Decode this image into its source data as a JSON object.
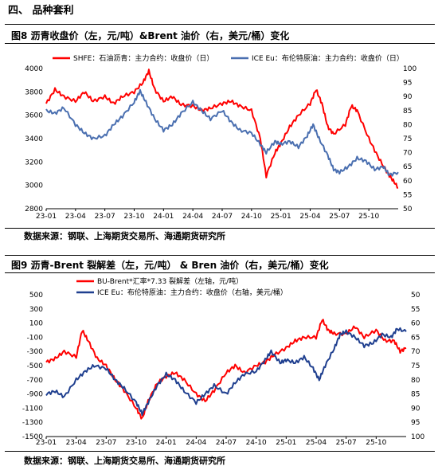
{
  "section": {
    "title": "四、 品种套利"
  },
  "figures": [
    {
      "title": "图8  沥青收盘价（左，元/吨）&Brent 油价（右，美元/桶）变化",
      "source": "数据来源：钢联、上海期货交易所、海通期货研究所"
    },
    {
      "title": "图9  沥青-Brent 裂解差（左，元/吨） & Bren 油价（右，美元/桶）变化",
      "source": "数据来源：钢联、上海期货交易所、海通期货研究所"
    }
  ],
  "colors": {
    "red": "#ff0000",
    "blue": "#4a6fb0",
    "darkblue": "#1f3f8f"
  },
  "chart_data": [
    {
      "type": "line",
      "x_ticks": [
        "23-01",
        "23-04",
        "23-07",
        "23-10",
        "24-01",
        "24-04",
        "24-07",
        "24-10",
        "25-01",
        "25-04",
        "25-07",
        "25-10"
      ],
      "y_left": {
        "ticks": [
          2800,
          3000,
          3200,
          3400,
          3600,
          3800,
          4000
        ],
        "lim": [
          2800,
          4000
        ]
      },
      "y_right": {
        "ticks": [
          50,
          55,
          60,
          65,
          70,
          75,
          80,
          85,
          90,
          95,
          100
        ],
        "lim": [
          50,
          100
        ]
      },
      "legend_position": "top",
      "series": [
        {
          "name": "SHFE：石油沥青：主力合约：收盘价（日）",
          "axis": "left",
          "color": "#ff0000",
          "points": [
            [
              0,
              3700
            ],
            [
              0.3,
              3820
            ],
            [
              0.6,
              3760
            ],
            [
              1,
              3720
            ],
            [
              1.3,
              3800
            ],
            [
              1.6,
              3720
            ],
            [
              2,
              3760
            ],
            [
              2.3,
              3700
            ],
            [
              2.6,
              3760
            ],
            [
              3,
              3800
            ],
            [
              3.3,
              3880
            ],
            [
              3.5,
              3980
            ],
            [
              3.7,
              3820
            ],
            [
              4,
              3720
            ],
            [
              4.3,
              3760
            ],
            [
              4.6,
              3690
            ],
            [
              5,
              3680
            ],
            [
              5.3,
              3640
            ],
            [
              5.6,
              3660
            ],
            [
              6,
              3700
            ],
            [
              6.3,
              3720
            ],
            [
              6.6,
              3680
            ],
            [
              7,
              3640
            ],
            [
              7.3,
              3400
            ],
            [
              7.5,
              3080
            ],
            [
              7.8,
              3280
            ],
            [
              8,
              3360
            ],
            [
              8.3,
              3500
            ],
            [
              8.6,
              3600
            ],
            [
              9,
              3700
            ],
            [
              9.2,
              3820
            ],
            [
              9.4,
              3700
            ],
            [
              9.6,
              3500
            ],
            [
              9.8,
              3440
            ],
            [
              10.2,
              3520
            ],
            [
              10.4,
              3680
            ],
            [
              10.6,
              3640
            ],
            [
              11,
              3400
            ],
            [
              11.3,
              3250
            ],
            [
              11.6,
              3120
            ],
            [
              11.8,
              3050
            ],
            [
              12,
              2980
            ]
          ]
        },
        {
          "name": "ICE Eu：布伦特原油：主力合约：收盘价（日）",
          "axis": "right",
          "color": "#4a6fb0",
          "points": [
            [
              0,
              85
            ],
            [
              0.3,
              84
            ],
            [
              0.6,
              86
            ],
            [
              1,
              80
            ],
            [
              1.3,
              77
            ],
            [
              1.6,
              75
            ],
            [
              2,
              76
            ],
            [
              2.3,
              80
            ],
            [
              2.6,
              83
            ],
            [
              3,
              88
            ],
            [
              3.2,
              92
            ],
            [
              3.4,
              88
            ],
            [
              3.7,
              82
            ],
            [
              4,
              78
            ],
            [
              4.3,
              80
            ],
            [
              4.6,
              84
            ],
            [
              5,
              88
            ],
            [
              5.3,
              85
            ],
            [
              5.6,
              82
            ],
            [
              6,
              85
            ],
            [
              6.3,
              81
            ],
            [
              6.6,
              78
            ],
            [
              7,
              77
            ],
            [
              7.3,
              73
            ],
            [
              7.5,
              70
            ],
            [
              7.8,
              74
            ],
            [
              8,
              73
            ],
            [
              8.3,
              74
            ],
            [
              8.6,
              72
            ],
            [
              8.9,
              76
            ],
            [
              9.1,
              80
            ],
            [
              9.3,
              75
            ],
            [
              9.6,
              69
            ],
            [
              9.8,
              64
            ],
            [
              10,
              63
            ],
            [
              10.3,
              65
            ],
            [
              10.6,
              68
            ],
            [
              10.9,
              67
            ],
            [
              11.2,
              64
            ],
            [
              11.5,
              65
            ],
            [
              11.7,
              62
            ],
            [
              12,
              63
            ]
          ]
        }
      ]
    },
    {
      "type": "line",
      "x_ticks": [
        "23-01",
        "23-04",
        "23-07",
        "23-10",
        "24-01",
        "24-04",
        "24-07",
        "24-10",
        "25-01",
        "25-04",
        "25-07",
        "25-10"
      ],
      "y_left": {
        "ticks": [
          500,
          300,
          100,
          -100,
          -300,
          -500,
          -700,
          -900,
          -1100,
          -1300,
          -1500
        ],
        "lim": [
          -1500,
          500
        ]
      },
      "y_right": {
        "ticks": [
          50,
          55,
          60,
          65,
          70,
          75,
          80,
          85,
          90,
          95,
          100
        ],
        "lim": [
          50,
          100
        ],
        "inverted": true
      },
      "legend_position": "top-left",
      "series": [
        {
          "name": "BU-Brent*汇率*7.33 裂解差（左轴，元/吨）",
          "axis": "left",
          "color": "#ff0000",
          "points": [
            [
              0,
              -450
            ],
            [
              0.3,
              -400
            ],
            [
              0.6,
              -300
            ],
            [
              1,
              -380
            ],
            [
              1.2,
              0
            ],
            [
              1.4,
              -150
            ],
            [
              1.7,
              -400
            ],
            [
              2,
              -500
            ],
            [
              2.3,
              -700
            ],
            [
              2.6,
              -850
            ],
            [
              3,
              -1100
            ],
            [
              3.2,
              -1250
            ],
            [
              3.4,
              -1000
            ],
            [
              3.7,
              -750
            ],
            [
              4,
              -650
            ],
            [
              4.3,
              -600
            ],
            [
              4.6,
              -700
            ],
            [
              5,
              -900
            ],
            [
              5.3,
              -1000
            ],
            [
              5.6,
              -850
            ],
            [
              6,
              -600
            ],
            [
              6.3,
              -500
            ],
            [
              6.6,
              -600
            ],
            [
              7,
              -500
            ],
            [
              7.3,
              -450
            ],
            [
              7.6,
              -350
            ],
            [
              8,
              -250
            ],
            [
              8.3,
              -150
            ],
            [
              8.6,
              -100
            ],
            [
              9,
              -100
            ],
            [
              9.2,
              150
            ],
            [
              9.4,
              0
            ],
            [
              9.6,
              -50
            ],
            [
              10,
              -50
            ],
            [
              10.3,
              50
            ],
            [
              10.6,
              -100
            ],
            [
              11,
              0
            ],
            [
              11.3,
              -150
            ],
            [
              11.6,
              -150
            ],
            [
              11.8,
              -300
            ],
            [
              12,
              -250
            ]
          ]
        },
        {
          "name": "ICE Eu：布伦特原油：主力合约：收盘价（右轴，美元/桶）",
          "axis": "right",
          "color": "#1f3f8f",
          "points": [
            [
              0,
              85
            ],
            [
              0.3,
              84
            ],
            [
              0.6,
              86
            ],
            [
              1,
              80
            ],
            [
              1.3,
              77
            ],
            [
              1.6,
              75
            ],
            [
              2,
              76
            ],
            [
              2.3,
              80
            ],
            [
              2.6,
              83
            ],
            [
              3,
              88
            ],
            [
              3.2,
              92
            ],
            [
              3.4,
              88
            ],
            [
              3.7,
              82
            ],
            [
              4,
              78
            ],
            [
              4.3,
              80
            ],
            [
              4.6,
              84
            ],
            [
              5,
              88
            ],
            [
              5.3,
              85
            ],
            [
              5.6,
              82
            ],
            [
              6,
              85
            ],
            [
              6.3,
              81
            ],
            [
              6.6,
              78
            ],
            [
              7,
              77
            ],
            [
              7.3,
              73
            ],
            [
              7.5,
              70
            ],
            [
              7.8,
              74
            ],
            [
              8,
              73
            ],
            [
              8.3,
              74
            ],
            [
              8.6,
              72
            ],
            [
              8.9,
              76
            ],
            [
              9.1,
              80
            ],
            [
              9.3,
              75
            ],
            [
              9.6,
              69
            ],
            [
              9.8,
              64
            ],
            [
              10,
              63
            ],
            [
              10.3,
              65
            ],
            [
              10.6,
              68
            ],
            [
              10.9,
              67
            ],
            [
              11.2,
              64
            ],
            [
              11.5,
              65
            ],
            [
              11.7,
              62
            ],
            [
              12,
              63
            ]
          ]
        }
      ]
    }
  ]
}
